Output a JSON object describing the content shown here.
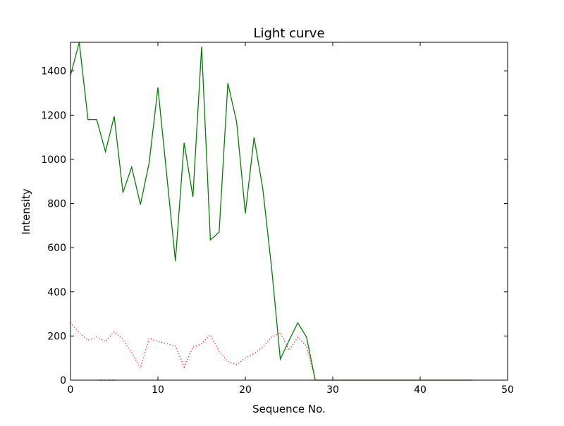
{
  "chart_data": {
    "type": "line",
    "title": "Light curve",
    "xlabel": "Sequence No.",
    "ylabel": "Intensity",
    "xlim": [
      0,
      50
    ],
    "ylim": [
      0,
      1530
    ],
    "xticks": [
      0,
      10,
      20,
      30,
      40,
      50
    ],
    "yticks": [
      0,
      200,
      400,
      600,
      800,
      1000,
      1200,
      1400
    ],
    "grid": false,
    "series": [
      {
        "name": "green",
        "color": "#008000",
        "style": "solid",
        "x": [
          0,
          1,
          2,
          3,
          4,
          5,
          6,
          7,
          8,
          9,
          10,
          11,
          12,
          13,
          14,
          15,
          16,
          17,
          18,
          19,
          20,
          21,
          22,
          23,
          24,
          25,
          26,
          27,
          28,
          29,
          30,
          31,
          32,
          33,
          34,
          35,
          36,
          37,
          38,
          39,
          40,
          41,
          42,
          43,
          44,
          45,
          46
        ],
        "y": [
          1380,
          1530,
          1180,
          1180,
          1035,
          1195,
          850,
          965,
          795,
          985,
          1325,
          932,
          540,
          1075,
          830,
          1510,
          635,
          670,
          1345,
          1170,
          755,
          1100,
          865,
          510,
          95,
          180,
          260,
          195,
          0,
          0,
          0,
          0,
          0,
          0,
          0,
          0,
          0,
          0,
          0,
          0,
          0,
          0,
          0,
          0,
          0,
          0,
          0
        ]
      },
      {
        "name": "red",
        "color": "#ff0000",
        "style": "dotted",
        "x": [
          0,
          1,
          2,
          3,
          4,
          5,
          6,
          7,
          8,
          9,
          10,
          11,
          12,
          13,
          14,
          15,
          16,
          17,
          18,
          19,
          20,
          21,
          22,
          23,
          24,
          25,
          26,
          27,
          28
        ],
        "y": [
          260,
          215,
          180,
          195,
          175,
          220,
          185,
          125,
          55,
          190,
          175,
          165,
          155,
          60,
          150,
          165,
          205,
          130,
          85,
          70,
          100,
          120,
          150,
          195,
          215,
          135,
          195,
          155,
          0
        ]
      },
      {
        "name": "blue",
        "color": "#0000aa",
        "style": "dashed",
        "x": [
          3.3,
          5.1
        ],
        "y": [
          0,
          0
        ]
      }
    ]
  }
}
